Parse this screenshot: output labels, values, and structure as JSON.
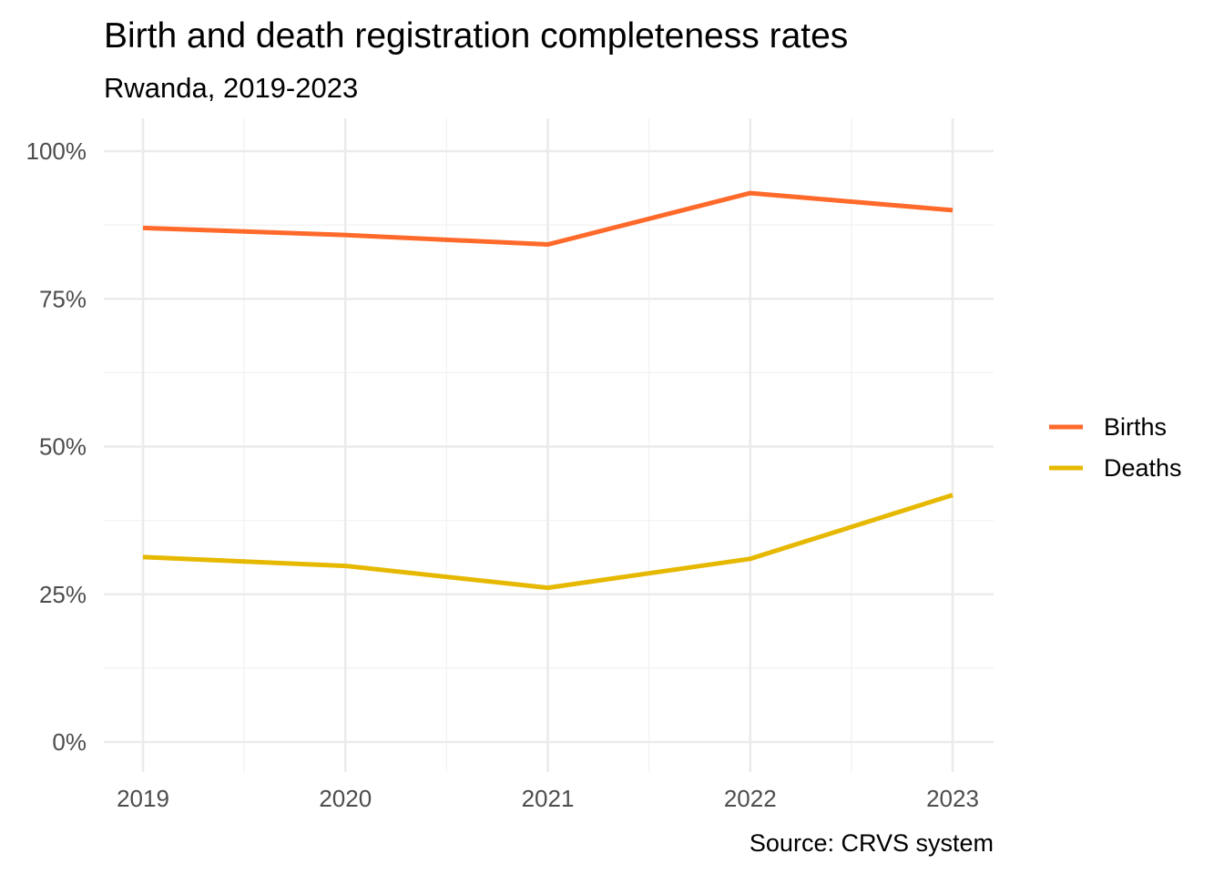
{
  "chart_data": {
    "type": "line",
    "title": "Birth and death registration completeness rates",
    "subtitle": "Rwanda, 2019-2023",
    "caption": "Source: CRVS system",
    "xlabel": "",
    "ylabel": "",
    "x": [
      2019,
      2020,
      2021,
      2022,
      2023
    ],
    "x_tick_labels": [
      "2019",
      "2020",
      "2021",
      "2022",
      "2023"
    ],
    "y_tick_labels": [
      "0%",
      "25%",
      "50%",
      "75%",
      "100%"
    ],
    "y_ticks": [
      0,
      25,
      50,
      75,
      100
    ],
    "ylim": [
      0,
      100
    ],
    "grid": true,
    "legend_position": "right",
    "series": [
      {
        "name": "Births",
        "color": "#FF6A2B",
        "values": [
          87,
          85.8,
          84.2,
          92.9,
          90
        ]
      },
      {
        "name": "Deaths",
        "color": "#E6B800",
        "values": [
          31.3,
          29.8,
          26.1,
          31,
          41.8
        ]
      }
    ]
  }
}
